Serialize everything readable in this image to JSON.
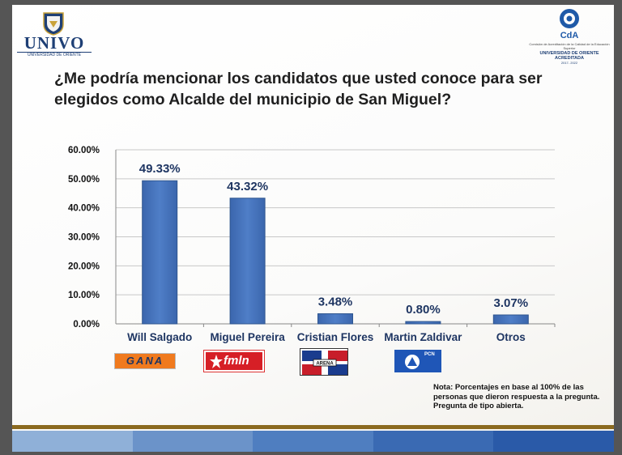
{
  "header": {
    "univo_name": "UNIVO",
    "univo_subtitle": "UNIVERSIDAD DE ORIENTE",
    "cda_small_text": "Comisión de Acreditación de la Calidad de la Educación Superior",
    "cda_university": "UNIVERSIDAD DE ORIENTE ACREDITADA",
    "cda_years": "2017- 2022"
  },
  "question": "¿Me podría mencionar los candidatos que usted conoce para ser elegidos como Alcalde del municipio de San Miguel?",
  "chart_data": {
    "type": "bar",
    "title": "",
    "categories": [
      "Will Salgado",
      "Miguel Pereira",
      "Cristian Flores",
      "Martin Zaldivar",
      "Otros"
    ],
    "values": [
      49.33,
      43.32,
      3.48,
      0.8,
      3.07
    ],
    "value_labels": [
      "49.33%",
      "43.32%",
      "3.48%",
      "0.80%",
      "3.07%"
    ],
    "ylim": [
      0,
      60
    ],
    "y_ticks": [
      "0.00%",
      "10.00%",
      "20.00%",
      "30.00%",
      "40.00%",
      "50.00%",
      "60.00%"
    ],
    "grid": true,
    "bar_color": "#4f7ec7",
    "label_color": "#1e3562"
  },
  "party_logos": [
    {
      "name": "gana-logo-icon",
      "text": "GANA"
    },
    {
      "name": "fmln-logo-icon",
      "text": "fmln"
    },
    {
      "name": "arena-logo-icon",
      "text": "ARENA"
    },
    {
      "name": "pcn-logo-icon",
      "text": "PCN"
    }
  ],
  "note": "Nota: Porcentajes en base al 100% de las personas que dieron respuesta a la pregunta. Pregunta de tipo abierta.",
  "colors": {
    "footer_gold": "#8b6a1f",
    "footer_blues": [
      "#8fb0d8",
      "#6b93c9",
      "#4f7ec0",
      "#3a6ab3",
      "#2a5aa8"
    ]
  }
}
